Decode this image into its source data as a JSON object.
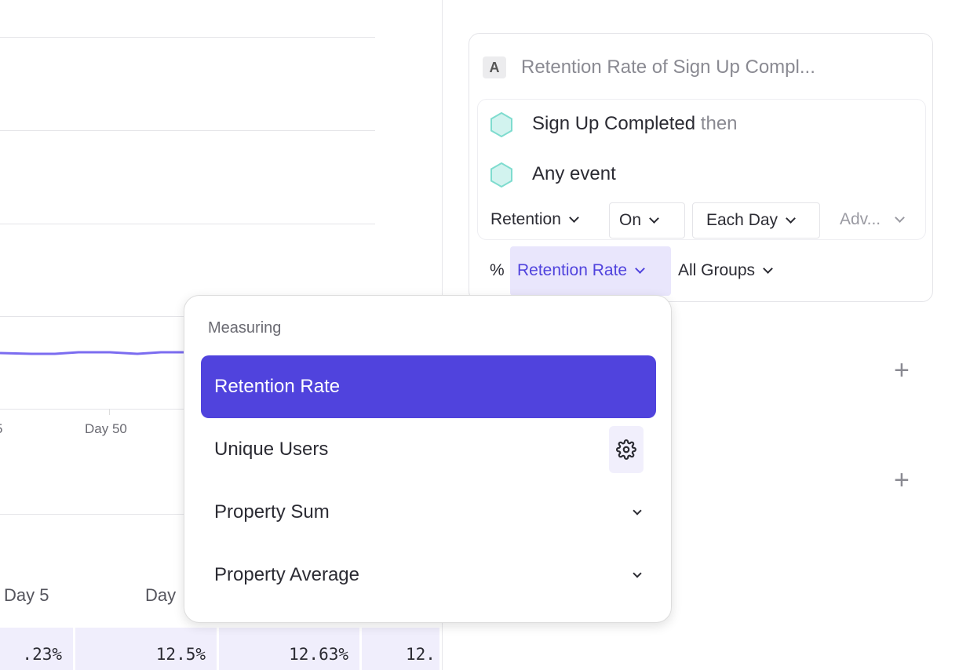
{
  "chart": {
    "x_tick_labels": [
      "5",
      "Day 50"
    ],
    "series_color": "#7b6cf0"
  },
  "table": {
    "column_headers": [
      "Day 5",
      "Day"
    ],
    "cells": [
      ".23%",
      "12.5%",
      "12.63%",
      "12."
    ]
  },
  "query_card": {
    "badge": "A",
    "title": "Retention Rate of Sign Up Compl...",
    "events": [
      {
        "name": "Sign Up Completed",
        "suffix": "then"
      },
      {
        "name": "Any event",
        "suffix": ""
      }
    ],
    "controls": {
      "retention": "Retention",
      "on": "On",
      "frequency": "Each Day",
      "advanced": "Adv..."
    },
    "measure_prefix": "%",
    "measure": "Retention Rate",
    "groups": "All Groups"
  },
  "dropdown": {
    "header": "Measuring",
    "items": [
      "Retention Rate",
      "Unique Users",
      "Property Sum",
      "Property Average"
    ],
    "selected": "Retention Rate",
    "accent": "#5043dd"
  }
}
